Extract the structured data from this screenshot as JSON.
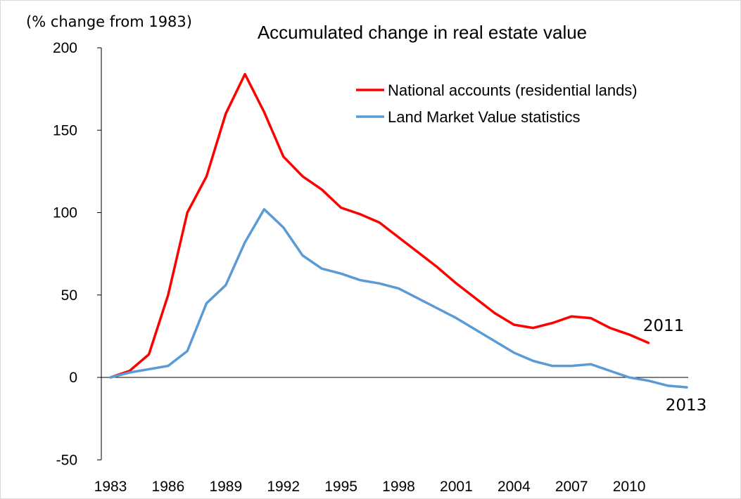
{
  "chart_data": {
    "type": "line",
    "title": "Accumulated change in real estate value",
    "ylabel": "(% change from 1983)",
    "xlabel": "",
    "ylim": [
      -50,
      200
    ],
    "yticks": [
      -50,
      0,
      50,
      100,
      150,
      200
    ],
    "xticks": [
      1983,
      1986,
      1989,
      1992,
      1995,
      1998,
      2001,
      2004,
      2007,
      2010
    ],
    "legend_position": "top-right",
    "grid": false,
    "series": [
      {
        "name": "National accounts (residential lands)",
        "color": "#ff0000",
        "end_label": "2011",
        "x": [
          1983,
          1984,
          1985,
          1986,
          1987,
          1988,
          1989,
          1990,
          1991,
          1992,
          1993,
          1994,
          1995,
          1996,
          1997,
          1998,
          1999,
          2000,
          2001,
          2002,
          2003,
          2004,
          2005,
          2006,
          2007,
          2008,
          2009,
          2010,
          2011
        ],
        "y": [
          0,
          4,
          14,
          50,
          100,
          122,
          160,
          184,
          161,
          134,
          122,
          114,
          103,
          99,
          94,
          85,
          76,
          67,
          57,
          48,
          39,
          32,
          30,
          33,
          37,
          36,
          30,
          26,
          21
        ]
      },
      {
        "name": "Land Market Value statistics",
        "color": "#5b9bd5",
        "end_label": "2013",
        "x": [
          1983,
          1984,
          1985,
          1986,
          1987,
          1988,
          1989,
          1990,
          1991,
          1992,
          1993,
          1994,
          1995,
          1996,
          1997,
          1998,
          1999,
          2000,
          2001,
          2002,
          2003,
          2004,
          2005,
          2006,
          2007,
          2008,
          2009,
          2010,
          2011,
          2012,
          2013
        ],
        "y": [
          0,
          3,
          5,
          7,
          16,
          45,
          56,
          82,
          102,
          91,
          74,
          66,
          63,
          59,
          57,
          54,
          48,
          42,
          36,
          29,
          22,
          15,
          10,
          7,
          7,
          8,
          4,
          0,
          -2,
          -5,
          -6
        ]
      }
    ]
  }
}
